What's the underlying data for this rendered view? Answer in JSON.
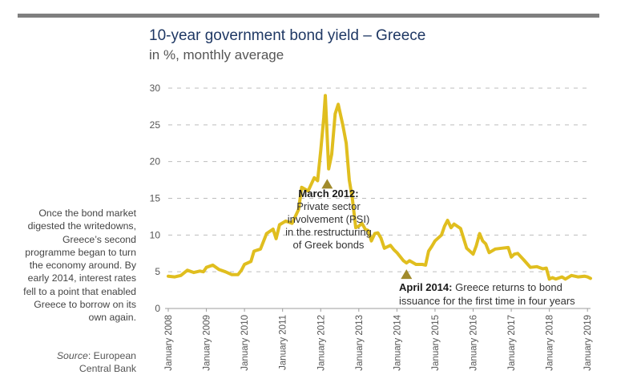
{
  "header": {
    "title": "10-year government bond yield – Greece",
    "subtitle": "in %, monthly average"
  },
  "side_note": "Once the bond market digested the writedowns, Greece’s second programme began to turn the economy around. By early 2014, interest rates fell to a point that enabled Greece to borrow on its own again.",
  "source": {
    "label": "Source",
    "text": ": European Central Bank"
  },
  "annotations": {
    "psi": {
      "date_label": "March 2012:",
      "text": "Private sector involvement (PSI) in the restructuring of Greek bonds",
      "x": 2012.17,
      "y": 18.5
    },
    "reaccess": {
      "date_label": "April 2014:",
      "text": "Greece returns to bond issuance for the first time in four years",
      "x": 2014.25,
      "y": 6.2
    }
  },
  "colors": {
    "line": "#e0be1f",
    "marker": "#a08a2c",
    "title": "#1f3864",
    "grid": "#bdbdbd"
  },
  "chart_data": {
    "type": "line",
    "title": "10-year government bond yield – Greece",
    "subtitle": "in %, monthly average",
    "xlabel": "",
    "ylabel": "",
    "ylim": [
      0,
      30
    ],
    "xlim": [
      2008.0,
      2019.08
    ],
    "yticks": [
      0,
      5,
      10,
      15,
      20,
      25,
      30
    ],
    "xticks": [
      {
        "value": 2008,
        "label": "January 2008"
      },
      {
        "value": 2009,
        "label": "January 2009"
      },
      {
        "value": 2010,
        "label": "January 2010"
      },
      {
        "value": 2011,
        "label": "January 2011"
      },
      {
        "value": 2012,
        "label": "January 2012"
      },
      {
        "value": 2013,
        "label": "January 2013"
      },
      {
        "value": 2014,
        "label": "January 2014"
      },
      {
        "value": 2015,
        "label": "January 2015"
      },
      {
        "value": 2016,
        "label": "January 2016"
      },
      {
        "value": 2017,
        "label": "January 2017"
      },
      {
        "value": 2018,
        "label": "January 2018"
      },
      {
        "value": 2019,
        "label": "January 2019"
      }
    ],
    "grid": "horizontal-dashed",
    "legend": "none",
    "series": [
      {
        "points": [
          [
            2008.0,
            4.4
          ],
          [
            2008.17,
            4.3
          ],
          [
            2008.33,
            4.5
          ],
          [
            2008.5,
            5.2
          ],
          [
            2008.67,
            4.9
          ],
          [
            2008.83,
            5.1
          ],
          [
            2008.92,
            5.0
          ],
          [
            2009.0,
            5.6
          ],
          [
            2009.17,
            5.9
          ],
          [
            2009.33,
            5.3
          ],
          [
            2009.5,
            5.0
          ],
          [
            2009.67,
            4.6
          ],
          [
            2009.83,
            4.6
          ],
          [
            2009.92,
            5.2
          ],
          [
            2010.0,
            6.0
          ],
          [
            2010.17,
            6.4
          ],
          [
            2010.25,
            7.8
          ],
          [
            2010.42,
            8.1
          ],
          [
            2010.58,
            10.2
          ],
          [
            2010.75,
            10.8
          ],
          [
            2010.83,
            9.5
          ],
          [
            2010.92,
            11.4
          ],
          [
            2011.08,
            11.9
          ],
          [
            2011.25,
            11.6
          ],
          [
            2011.42,
            13.5
          ],
          [
            2011.5,
            16.5
          ],
          [
            2011.67,
            16.0
          ],
          [
            2011.83,
            17.8
          ],
          [
            2011.92,
            17.4
          ],
          [
            2012.0,
            21.5
          ],
          [
            2012.08,
            26.0
          ],
          [
            2012.12,
            29.0
          ],
          [
            2012.21,
            19.0
          ],
          [
            2012.29,
            21.0
          ],
          [
            2012.38,
            26.5
          ],
          [
            2012.46,
            27.8
          ],
          [
            2012.58,
            25.0
          ],
          [
            2012.67,
            22.5
          ],
          [
            2012.75,
            17.5
          ],
          [
            2012.83,
            15.0
          ],
          [
            2012.92,
            11.0
          ],
          [
            2013.0,
            11.2
          ],
          [
            2013.08,
            11.6
          ],
          [
            2013.17,
            10.8
          ],
          [
            2013.25,
            10.6
          ],
          [
            2013.33,
            9.2
          ],
          [
            2013.42,
            10.2
          ],
          [
            2013.5,
            10.3
          ],
          [
            2013.58,
            9.6
          ],
          [
            2013.67,
            8.2
          ],
          [
            2013.83,
            8.6
          ],
          [
            2013.92,
            8.0
          ],
          [
            2014.0,
            7.6
          ],
          [
            2014.17,
            6.5
          ],
          [
            2014.25,
            6.2
          ],
          [
            2014.33,
            6.5
          ],
          [
            2014.5,
            6.0
          ],
          [
            2014.67,
            6.0
          ],
          [
            2014.75,
            5.9
          ],
          [
            2014.83,
            7.8
          ],
          [
            2014.92,
            8.5
          ],
          [
            2015.0,
            9.2
          ],
          [
            2015.17,
            10.0
          ],
          [
            2015.25,
            11.2
          ],
          [
            2015.33,
            12.0
          ],
          [
            2015.42,
            11.0
          ],
          [
            2015.5,
            11.5
          ],
          [
            2015.67,
            10.9
          ],
          [
            2015.83,
            8.2
          ],
          [
            2016.0,
            7.4
          ],
          [
            2016.08,
            8.5
          ],
          [
            2016.17,
            10.2
          ],
          [
            2016.25,
            9.2
          ],
          [
            2016.33,
            8.8
          ],
          [
            2016.42,
            7.6
          ],
          [
            2016.58,
            8.1
          ],
          [
            2016.75,
            8.2
          ],
          [
            2016.92,
            8.3
          ],
          [
            2017.0,
            7.0
          ],
          [
            2017.08,
            7.4
          ],
          [
            2017.17,
            7.5
          ],
          [
            2017.33,
            6.6
          ],
          [
            2017.5,
            5.6
          ],
          [
            2017.67,
            5.7
          ],
          [
            2017.83,
            5.4
          ],
          [
            2017.92,
            5.5
          ],
          [
            2018.0,
            4.0
          ],
          [
            2018.08,
            4.2
          ],
          [
            2018.17,
            4.0
          ],
          [
            2018.33,
            4.3
          ],
          [
            2018.42,
            4.0
          ],
          [
            2018.58,
            4.5
          ],
          [
            2018.75,
            4.3
          ],
          [
            2018.92,
            4.4
          ],
          [
            2019.0,
            4.3
          ],
          [
            2019.08,
            4.1
          ]
        ]
      }
    ]
  }
}
